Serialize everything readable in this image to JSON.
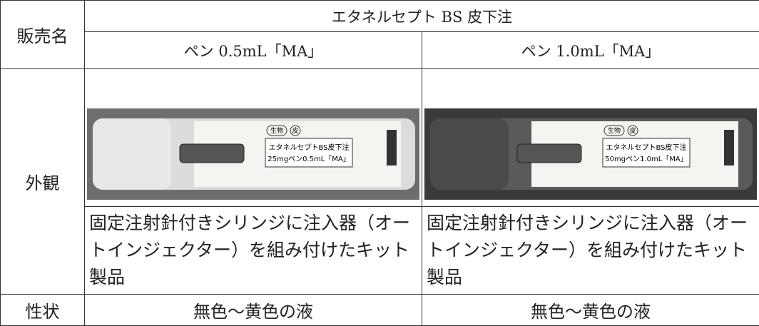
{
  "table": {
    "header": {
      "row_label": "販売名",
      "product": "エタネルセプト BS 皮下注",
      "variants": [
        "ペン 0.5mL「MA」",
        "ペン 1.0mL「MA」"
      ]
    },
    "appearance": {
      "label": "外観",
      "images": [
        {
          "badges": [
            "生物",
            "皮"
          ],
          "label_lines": [
            "エタネルセプトBS皮下注",
            "25mgペン0.5mL「MA」"
          ]
        },
        {
          "badges": [
            "生物",
            "皮"
          ],
          "label_lines": [
            "エタネルセプトBS皮下注",
            "50mgペン1.0mL「MA」"
          ]
        }
      ],
      "descriptions": [
        "固定注射針付きシリンジに注入器（オートインジェクター）を組み付けたキット製品",
        "固定注射針付きシリンジに注入器（オートインジェクター）を組み付けたキット製品"
      ]
    },
    "property": {
      "label": "性状",
      "cells": [
        "無色～黄色の液",
        "無色～黄色の液"
      ]
    }
  }
}
